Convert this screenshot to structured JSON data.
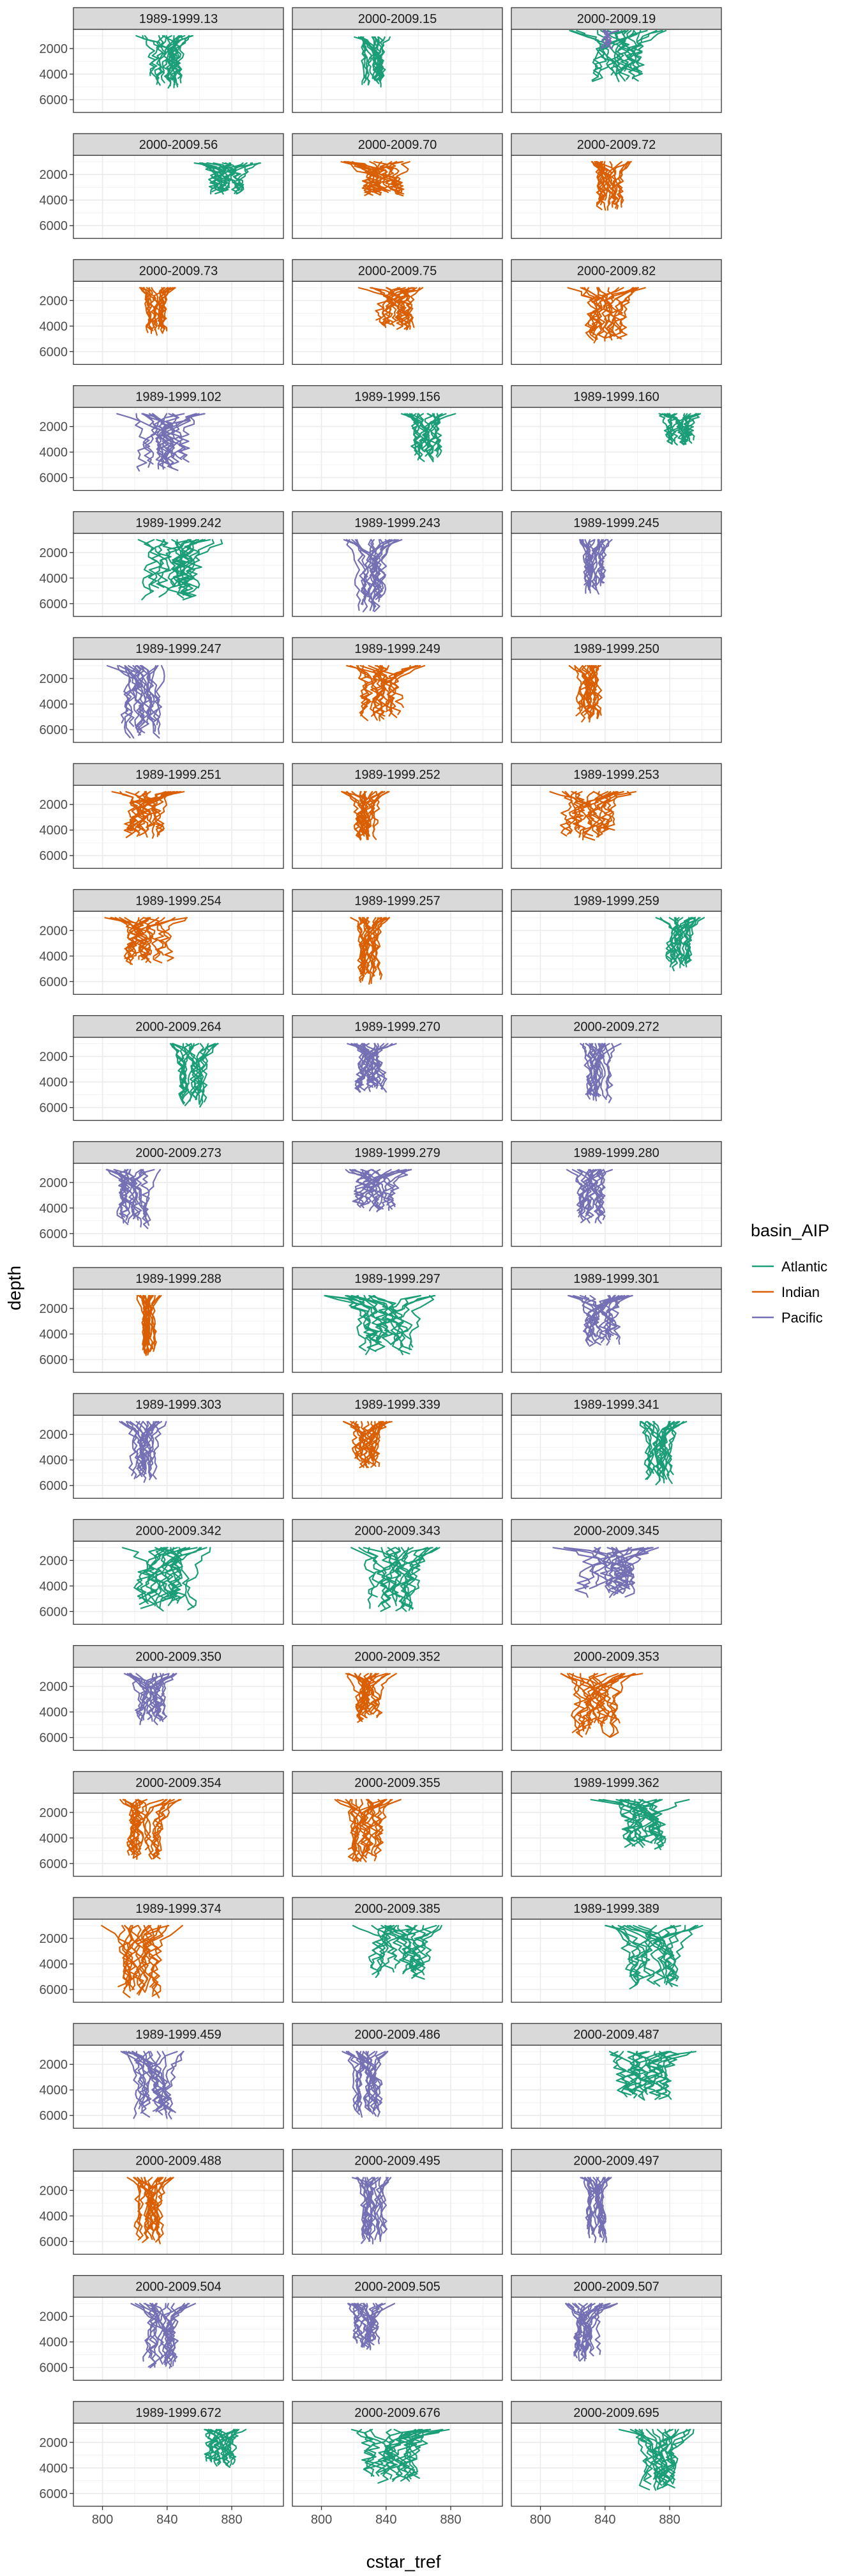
{
  "chart_data": {
    "type": "line",
    "facet_grid": {
      "rows": 20,
      "cols": 3
    },
    "x_ticks": [
      800,
      840,
      880
    ],
    "y_ticks": [
      2000,
      4000,
      6000
    ],
    "xlim": [
      782,
      912
    ],
    "ylim": [
      7000,
      500
    ],
    "y_reversed": true,
    "xlabel": "cstar_tref",
    "ylabel": "depth",
    "legend": {
      "title": "basin_AIP",
      "position": "right"
    },
    "colors": {
      "Atlantic": "#1B9E77",
      "Indian": "#D95F02",
      "Pacific": "#7570B3"
    },
    "series_names": [
      "Atlantic",
      "Indian",
      "Pacific"
    ],
    "panels": [
      {
        "label": "1989-1999.13",
        "basin": "Atlantic",
        "xmin": 818,
        "xmax": 862,
        "ytop": 1000,
        "ybot": 5100
      },
      {
        "label": "2000-2009.15",
        "basin": "Atlantic",
        "xmin": 820,
        "xmax": 846,
        "ytop": 1100,
        "ybot": 5000
      },
      {
        "label": "2000-2009.19",
        "basin": "Atlantic",
        "xmin": 816,
        "xmax": 880,
        "ytop": 600,
        "ybot": 4600,
        "secondary": "Pacific"
      },
      {
        "label": "2000-2009.56",
        "basin": "Atlantic",
        "xmin": 856,
        "xmax": 902,
        "ytop": 1100,
        "ybot": 3600
      },
      {
        "label": "2000-2009.70",
        "basin": "Indian",
        "xmin": 808,
        "xmax": 868,
        "ytop": 1000,
        "ybot": 3700
      },
      {
        "label": "2000-2009.72",
        "basin": "Indian",
        "xmin": 828,
        "xmax": 860,
        "ytop": 1000,
        "ybot": 4800
      },
      {
        "label": "2000-2009.73",
        "basin": "Indian",
        "xmin": 822,
        "xmax": 846,
        "ytop": 1000,
        "ybot": 4700
      },
      {
        "label": "2000-2009.75",
        "basin": "Indian",
        "xmin": 822,
        "xmax": 870,
        "ytop": 1000,
        "ybot": 4300
      },
      {
        "label": "2000-2009.82",
        "basin": "Indian",
        "xmin": 814,
        "xmax": 868,
        "ytop": 1000,
        "ybot": 5400
      },
      {
        "label": "1989-1999.102",
        "basin": "Pacific",
        "xmin": 808,
        "xmax": 870,
        "ytop": 1000,
        "ybot": 5500
      },
      {
        "label": "1989-1999.156",
        "basin": "Atlantic",
        "xmin": 848,
        "xmax": 884,
        "ytop": 1000,
        "ybot": 4800
      },
      {
        "label": "1989-1999.160",
        "basin": "Atlantic",
        "xmin": 870,
        "xmax": 904,
        "ytop": 1000,
        "ybot": 3500
      },
      {
        "label": "1989-1999.242",
        "basin": "Atlantic",
        "xmin": 800,
        "xmax": 880,
        "ytop": 1000,
        "ybot": 5700
      },
      {
        "label": "1989-1999.243",
        "basin": "Pacific",
        "xmin": 812,
        "xmax": 852,
        "ytop": 1000,
        "ybot": 6700
      },
      {
        "label": "1989-1999.245",
        "basin": "Pacific",
        "xmin": 822,
        "xmax": 846,
        "ytop": 1000,
        "ybot": 5300
      },
      {
        "label": "1989-1999.247",
        "basin": "Pacific",
        "xmin": 802,
        "xmax": 848,
        "ytop": 1000,
        "ybot": 6700
      },
      {
        "label": "1989-1999.249",
        "basin": "Indian",
        "xmin": 812,
        "xmax": 864,
        "ytop": 1000,
        "ybot": 5300
      },
      {
        "label": "1989-1999.250",
        "basin": "Indian",
        "xmin": 814,
        "xmax": 848,
        "ytop": 1000,
        "ybot": 5400
      },
      {
        "label": "1989-1999.251",
        "basin": "Indian",
        "xmin": 802,
        "xmax": 852,
        "ytop": 1000,
        "ybot": 4700
      },
      {
        "label": "1989-1999.252",
        "basin": "Indian",
        "xmin": 812,
        "xmax": 846,
        "ytop": 1000,
        "ybot": 4800
      },
      {
        "label": "1989-1999.253",
        "basin": "Indian",
        "xmin": 800,
        "xmax": 862,
        "ytop": 1000,
        "ybot": 4800
      },
      {
        "label": "1989-1999.254",
        "basin": "Indian",
        "xmin": 800,
        "xmax": 860,
        "ytop": 1000,
        "ybot": 4700
      },
      {
        "label": "1989-1999.257",
        "basin": "Indian",
        "xmin": 814,
        "xmax": 846,
        "ytop": 1000,
        "ybot": 6200
      },
      {
        "label": "1989-1999.259",
        "basin": "Atlantic",
        "xmin": 870,
        "xmax": 902,
        "ytop": 1000,
        "ybot": 5200
      },
      {
        "label": "2000-2009.264",
        "basin": "Atlantic",
        "xmin": 838,
        "xmax": 878,
        "ytop": 1000,
        "ybot": 6000
      },
      {
        "label": "1989-1999.270",
        "basin": "Pacific",
        "xmin": 812,
        "xmax": 852,
        "ytop": 1000,
        "ybot": 4800
      },
      {
        "label": "2000-2009.272",
        "basin": "Pacific",
        "xmin": 822,
        "xmax": 852,
        "ytop": 1000,
        "ybot": 5600
      },
      {
        "label": "2000-2009.273",
        "basin": "Pacific",
        "xmin": 800,
        "xmax": 844,
        "ytop": 1000,
        "ybot": 5600
      },
      {
        "label": "1989-1999.279",
        "basin": "Pacific",
        "xmin": 808,
        "xmax": 862,
        "ytop": 1000,
        "ybot": 4500
      },
      {
        "label": "1989-1999.280",
        "basin": "Pacific",
        "xmin": 812,
        "xmax": 850,
        "ytop": 1000,
        "ybot": 5200
      },
      {
        "label": "1989-1999.288",
        "basin": "Indian",
        "xmin": 820,
        "xmax": 838,
        "ytop": 1000,
        "ybot": 5700
      },
      {
        "label": "1989-1999.297",
        "basin": "Atlantic",
        "xmin": 802,
        "xmax": 880,
        "ytop": 1000,
        "ybot": 5600
      },
      {
        "label": "1989-1999.301",
        "basin": "Pacific",
        "xmin": 812,
        "xmax": 864,
        "ytop": 1000,
        "ybot": 5000
      },
      {
        "label": "1989-1999.303",
        "basin": "Pacific",
        "xmin": 810,
        "xmax": 842,
        "ytop": 1000,
        "ybot": 5800
      },
      {
        "label": "1989-1999.339",
        "basin": "Indian",
        "xmin": 810,
        "xmax": 846,
        "ytop": 1000,
        "ybot": 4600
      },
      {
        "label": "1989-1999.341",
        "basin": "Atlantic",
        "xmin": 858,
        "xmax": 892,
        "ytop": 1000,
        "ybot": 6000
      },
      {
        "label": "2000-2009.342",
        "basin": "Atlantic",
        "xmin": 804,
        "xmax": 878,
        "ytop": 1000,
        "ybot": 6100
      },
      {
        "label": "2000-2009.343",
        "basin": "Atlantic",
        "xmin": 812,
        "xmax": 878,
        "ytop": 1000,
        "ybot": 6000
      },
      {
        "label": "2000-2009.345",
        "basin": "Pacific",
        "xmin": 806,
        "xmax": 880,
        "ytop": 1000,
        "ybot": 4900
      },
      {
        "label": "2000-2009.350",
        "basin": "Pacific",
        "xmin": 812,
        "xmax": 850,
        "ytop": 1000,
        "ybot": 5000
      },
      {
        "label": "2000-2009.352",
        "basin": "Indian",
        "xmin": 814,
        "xmax": 848,
        "ytop": 1000,
        "ybot": 4800
      },
      {
        "label": "2000-2009.353",
        "basin": "Indian",
        "xmin": 806,
        "xmax": 864,
        "ytop": 1000,
        "ybot": 6000
      },
      {
        "label": "2000-2009.354",
        "basin": "Indian",
        "xmin": 806,
        "xmax": 850,
        "ytop": 1000,
        "ybot": 5800
      },
      {
        "label": "2000-2009.355",
        "basin": "Indian",
        "xmin": 806,
        "xmax": 852,
        "ytop": 1000,
        "ybot": 5900
      },
      {
        "label": "1989-1999.362",
        "basin": "Atlantic",
        "xmin": 828,
        "xmax": 902,
        "ytop": 1000,
        "ybot": 5000
      },
      {
        "label": "1989-1999.374",
        "basin": "Indian",
        "xmin": 796,
        "xmax": 850,
        "ytop": 1000,
        "ybot": 6700
      },
      {
        "label": "2000-2009.385",
        "basin": "Atlantic",
        "xmin": 814,
        "xmax": 884,
        "ytop": 1000,
        "ybot": 5200
      },
      {
        "label": "1989-1999.389",
        "basin": "Atlantic",
        "xmin": 838,
        "xmax": 906,
        "ytop": 1000,
        "ybot": 6200
      },
      {
        "label": "1989-1999.459",
        "basin": "Pacific",
        "xmin": 808,
        "xmax": 858,
        "ytop": 1000,
        "ybot": 6300
      },
      {
        "label": "2000-2009.486",
        "basin": "Pacific",
        "xmin": 812,
        "xmax": 848,
        "ytop": 1000,
        "ybot": 6300
      },
      {
        "label": "2000-2009.487",
        "basin": "Atlantic",
        "xmin": 832,
        "xmax": 900,
        "ytop": 1000,
        "ybot": 4800
      },
      {
        "label": "2000-2009.488",
        "basin": "Indian",
        "xmin": 812,
        "xmax": 846,
        "ytop": 1000,
        "ybot": 6200
      },
      {
        "label": "2000-2009.495",
        "basin": "Pacific",
        "xmin": 818,
        "xmax": 850,
        "ytop": 1000,
        "ybot": 6300
      },
      {
        "label": "2000-2009.497",
        "basin": "Pacific",
        "xmin": 822,
        "xmax": 848,
        "ytop": 1000,
        "ybot": 6200
      },
      {
        "label": "2000-2009.504",
        "basin": "Pacific",
        "xmin": 812,
        "xmax": 860,
        "ytop": 1000,
        "ybot": 6200
      },
      {
        "label": "2000-2009.505",
        "basin": "Pacific",
        "xmin": 812,
        "xmax": 846,
        "ytop": 1000,
        "ybot": 4600
      },
      {
        "label": "2000-2009.507",
        "basin": "Pacific",
        "xmin": 812,
        "xmax": 848,
        "ytop": 1000,
        "ybot": 5500
      },
      {
        "label": "1989-1999.672",
        "basin": "Atlantic",
        "xmin": 856,
        "xmax": 892,
        "ytop": 1000,
        "ybot": 4000
      },
      {
        "label": "2000-2009.676",
        "basin": "Atlantic",
        "xmin": 806,
        "xmax": 884,
        "ytop": 1000,
        "ybot": 5200
      },
      {
        "label": "2000-2009.695",
        "basin": "Atlantic",
        "xmin": 848,
        "xmax": 900,
        "ytop": 1000,
        "ybot": 6000
      }
    ]
  }
}
